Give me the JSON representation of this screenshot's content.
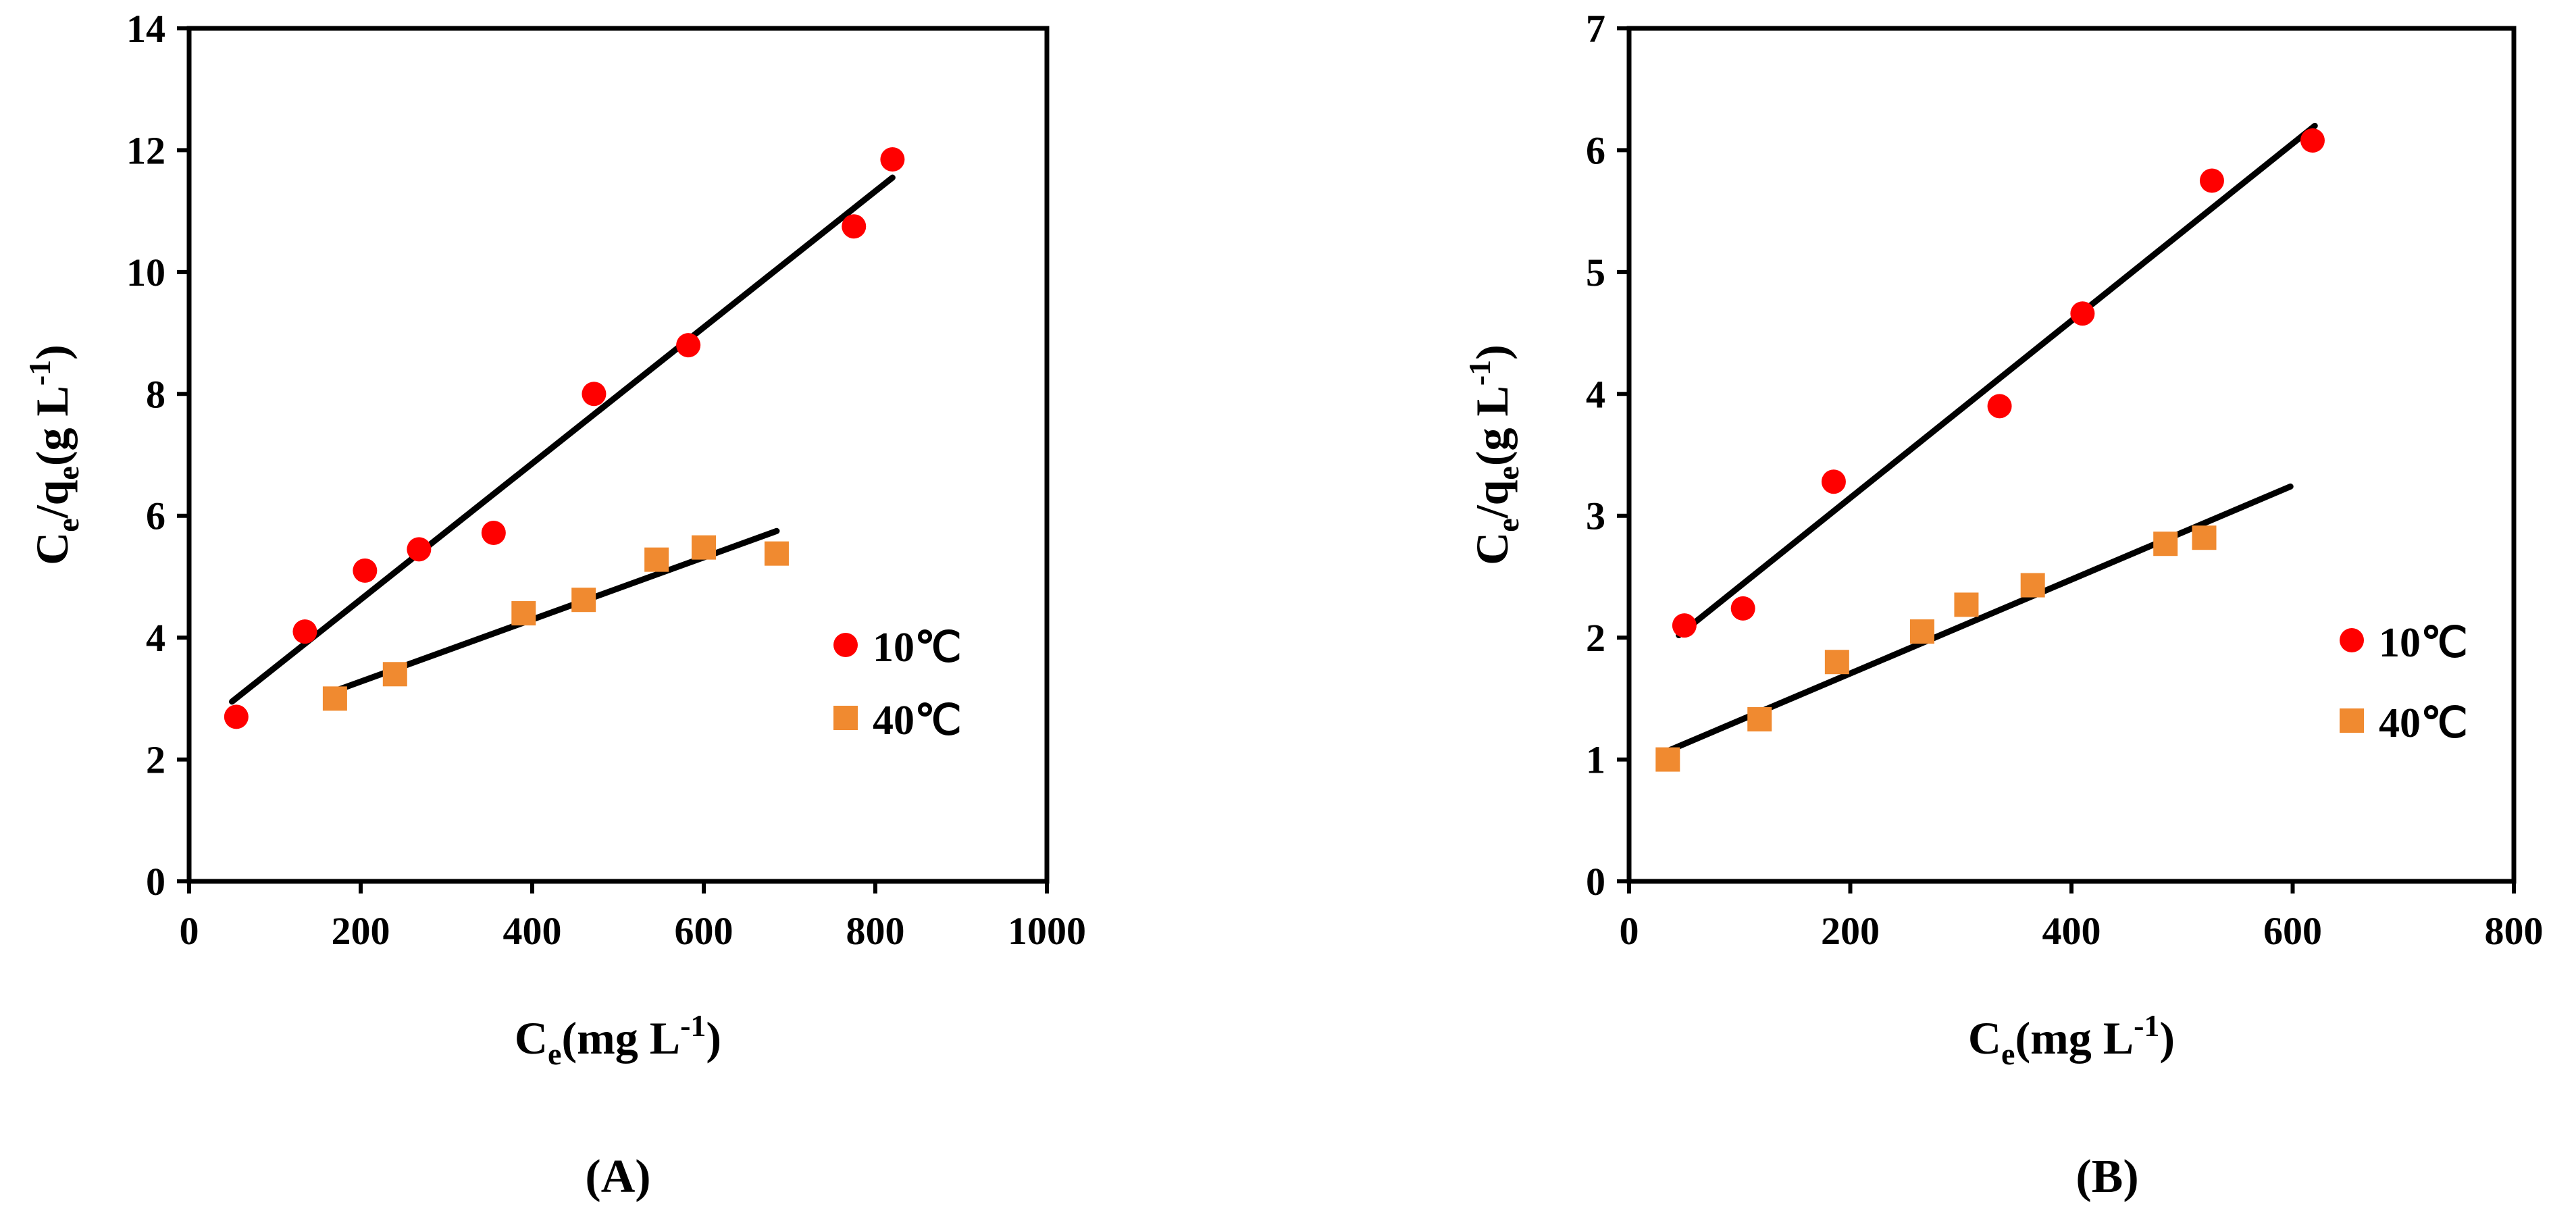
{
  "figure": {
    "panel_label_prefix": "(",
    "panel_label_suffix": ")"
  },
  "colors": {
    "series_10": "#ff0000",
    "series_40": "#f08a30",
    "fit_line": "#000000",
    "axes": "#000000"
  },
  "chart_data": [
    {
      "type": "scatter",
      "panel": "A",
      "xlabel_main": "C",
      "xlabel_sub": "e",
      "xlabel_rest": "(mg L",
      "xlabel_sup": "-1",
      "xlabel_end": ")",
      "ylabel_main": "C",
      "ylabel_sub1": "e",
      "ylabel_mid": "/q",
      "ylabel_sub2": "e",
      "ylabel_rest": "(g L",
      "ylabel_sup": "-1",
      "ylabel_end": ")",
      "xlim": [
        0,
        1000
      ],
      "ylim": [
        0,
        14
      ],
      "xticks": [
        0,
        200,
        400,
        600,
        800,
        1000
      ],
      "yticks": [
        0,
        2,
        4,
        6,
        8,
        10,
        12,
        14
      ],
      "legend_position": "right",
      "series": [
        {
          "name": "10℃",
          "marker": "circle",
          "x": [
            55,
            135,
            205,
            268,
            355,
            472,
            582,
            775,
            820
          ],
          "y": [
            2.7,
            4.1,
            5.1,
            5.45,
            5.72,
            8.0,
            8.8,
            10.75,
            11.85
          ],
          "fit": {
            "x": [
              50,
              820
            ],
            "y": [
              2.95,
              11.55
            ]
          }
        },
        {
          "name": "40℃",
          "marker": "square",
          "x": [
            170,
            240,
            390,
            460,
            545,
            600,
            685
          ],
          "y": [
            3.0,
            3.4,
            4.4,
            4.62,
            5.28,
            5.48,
            5.38
          ],
          "fit": {
            "x": [
              165,
              685
            ],
            "y": [
              3.1,
              5.75
            ]
          }
        }
      ]
    },
    {
      "type": "scatter",
      "panel": "B",
      "xlabel_main": "C",
      "xlabel_sub": "e",
      "xlabel_rest": "(mg L",
      "xlabel_sup": "-1",
      "xlabel_end": ")",
      "ylabel_main": "C",
      "ylabel_sub1": "e",
      "ylabel_mid": "/q",
      "ylabel_sub2": "e",
      "ylabel_rest": "(g L",
      "ylabel_sup": "-1",
      "ylabel_end": ")",
      "xlim": [
        0,
        800
      ],
      "ylim": [
        0,
        7
      ],
      "xticks": [
        0,
        200,
        400,
        600,
        800
      ],
      "yticks": [
        0,
        1,
        2,
        3,
        4,
        5,
        6,
        7
      ],
      "legend_position": "right",
      "series": [
        {
          "name": "10℃",
          "marker": "circle",
          "x": [
            50,
            103,
            185,
            335,
            410,
            527,
            618
          ],
          "y": [
            2.1,
            2.24,
            3.28,
            3.9,
            4.66,
            5.75,
            6.08
          ],
          "fit": {
            "x": [
              45,
              620
            ],
            "y": [
              2.02,
              6.2
            ]
          }
        },
        {
          "name": "40℃",
          "marker": "square",
          "x": [
            35,
            118,
            188,
            265,
            305,
            365,
            485,
            520
          ],
          "y": [
            1.0,
            1.33,
            1.8,
            2.05,
            2.27,
            2.43,
            2.77,
            2.82
          ],
          "fit": {
            "x": [
              35,
              598
            ],
            "y": [
              1.07,
              3.24
            ]
          }
        }
      ]
    }
  ]
}
